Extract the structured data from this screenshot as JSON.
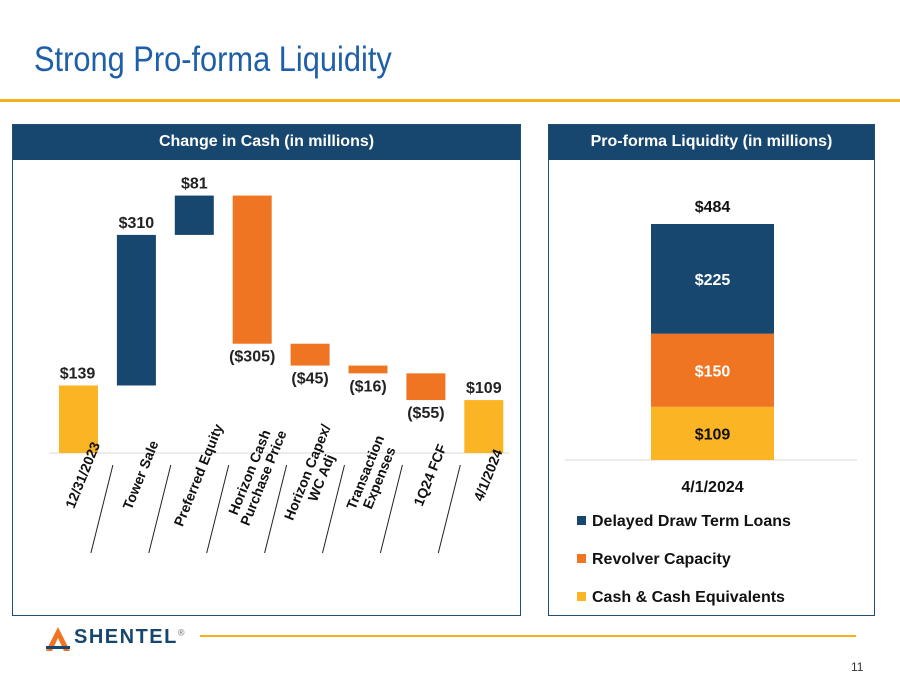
{
  "page": {
    "title": "Strong Pro-forma Liquidity",
    "page_number": "11",
    "brand": "SHENTEL",
    "brand_mark": "®"
  },
  "colors": {
    "navy": "#17476e",
    "orange": "#f07522",
    "gold": "#fbb424",
    "rule": "#f2b21b"
  },
  "chart_data": [
    {
      "type": "waterfall",
      "title": "Change in Cash (in millions)",
      "categories": [
        "12/31/2023",
        "Tower Sale",
        "Preferred Equity",
        "Horizon Cash Purchase Price",
        "Horizon Capex/ WC Adj",
        "Transaction Expenses",
        "1Q24 FCF",
        "4/1/2024"
      ],
      "category_lines": [
        [
          "12/31/2023"
        ],
        [
          "Tower Sale"
        ],
        [
          "Preferred Equity"
        ],
        [
          "Horizon Cash",
          "Purchase Price"
        ],
        [
          "Horizon Capex/",
          "WC Adj"
        ],
        [
          "Transaction",
          "Expenses"
        ],
        [
          "1Q24 FCF"
        ],
        [
          "4/1/2024"
        ]
      ],
      "values": [
        139,
        310,
        81,
        -305,
        -45,
        -16,
        -55,
        109
      ],
      "kinds": [
        "total",
        "increase",
        "increase",
        "decrease",
        "decrease",
        "decrease",
        "decrease",
        "total"
      ],
      "labels": [
        "$139",
        "$310",
        "$81",
        "($305)",
        "($45)",
        "($16)",
        "($55)",
        "$109"
      ],
      "ylim": [
        0,
        560
      ]
    },
    {
      "type": "stacked-bar",
      "title": "Pro-forma Liquidity (in millions)",
      "categories": [
        "4/1/2024"
      ],
      "total_label": "$484",
      "series": [
        {
          "name": "Cash & Cash Equivalents",
          "values": [
            109
          ],
          "label": "$109",
          "color": "#fbb424"
        },
        {
          "name": "Revolver Capacity",
          "values": [
            150
          ],
          "label": "$150",
          "color": "#f07522"
        },
        {
          "name": "Delayed Draw Term Loans",
          "values": [
            225
          ],
          "label": "$225",
          "color": "#17476e"
        }
      ],
      "legend": [
        "Delayed Draw Term Loans",
        "Revolver Capacity",
        "Cash & Cash Equivalents"
      ],
      "ylim": [
        0,
        540
      ]
    }
  ]
}
